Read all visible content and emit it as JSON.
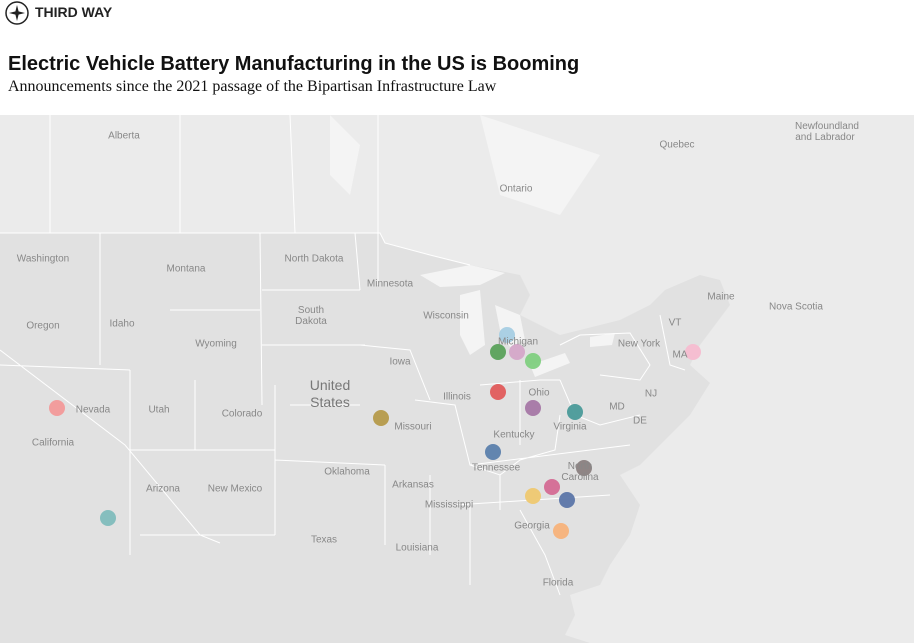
{
  "header": {
    "logo": "THIRD WAY",
    "title": "Electric Vehicle Battery Manufacturing in the US is Booming",
    "subtitle": "Announcements since the 2021 passage of the Bipartisan Infrastructure Law"
  },
  "map": {
    "labels": [
      "Alberta",
      "Quebec",
      "Newfoundland and Labrador",
      "Ontario",
      "Washington",
      "Montana",
      "North Dakota",
      "Minnesota",
      "South Dakota",
      "Wisconsin",
      "Michigan",
      "Maine",
      "Nova Scotia",
      "VT",
      "New York",
      "MA",
      "Oregon",
      "Idaho",
      "Wyoming",
      "Iowa",
      "United States",
      "Nevada",
      "Utah",
      "Colorado",
      "Illinois",
      "Ohio",
      "NJ",
      "MD",
      "DE",
      "Missouri",
      "Virginia",
      "Kentucky",
      "California",
      "North Carolina",
      "Tennessee",
      "Oklahoma",
      "Arkansas",
      "Arizona",
      "New Mexico",
      "Mississippi",
      "Georgia",
      "Texas",
      "Louisiana",
      "Florida"
    ]
  }
}
